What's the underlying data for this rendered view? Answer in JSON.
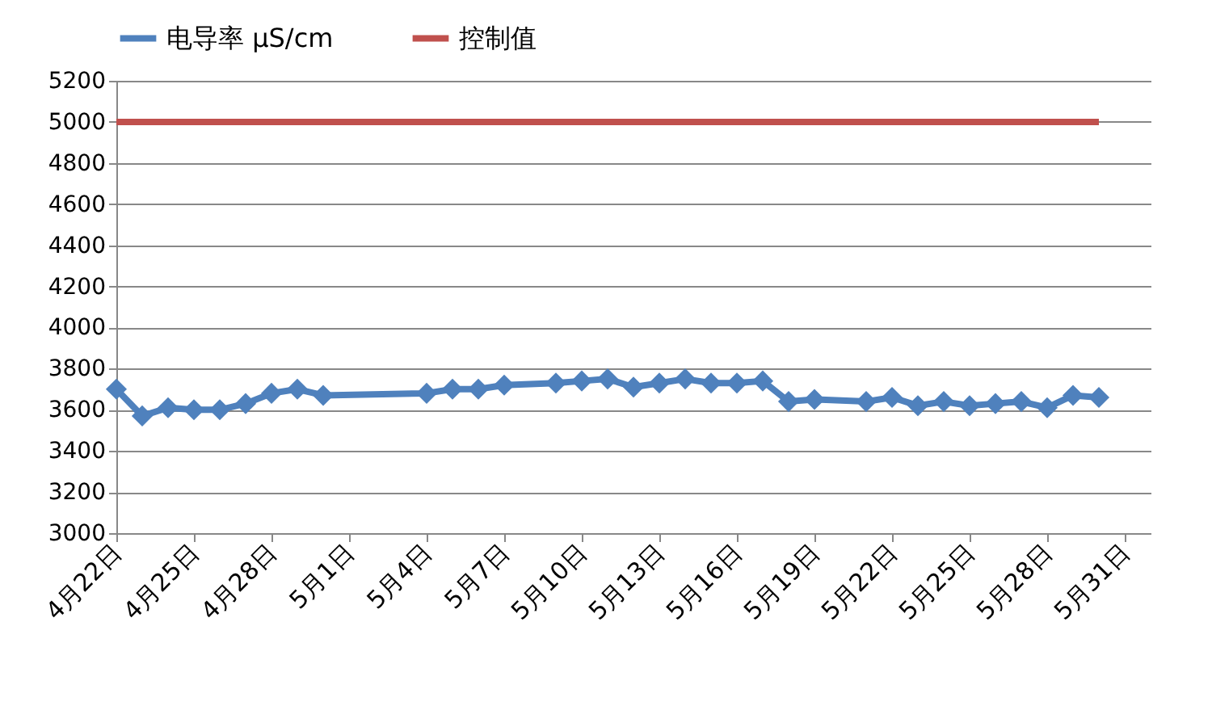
{
  "chart_data": {
    "type": "line",
    "marker": "diamond",
    "grid": "y",
    "legend": "top",
    "xlim": [
      "--04-22",
      "--06-01"
    ],
    "xticks": [
      {
        "value": "--04-22",
        "label": "4月22日"
      },
      {
        "value": "--04-25",
        "label": "4月25日"
      },
      {
        "value": "--04-28",
        "label": "4月28日"
      },
      {
        "value": "--05-01",
        "label": "5月1日"
      },
      {
        "value": "--05-04",
        "label": "5月4日"
      },
      {
        "value": "--05-07",
        "label": "5月7日"
      },
      {
        "value": "--05-10",
        "label": "5月10日"
      },
      {
        "value": "--05-13",
        "label": "5月13日"
      },
      {
        "value": "--05-16",
        "label": "5月16日"
      },
      {
        "value": "--05-19",
        "label": "5月19日"
      },
      {
        "value": "--05-22",
        "label": "5月22日"
      },
      {
        "value": "--05-25",
        "label": "5月25日"
      },
      {
        "value": "--05-28",
        "label": "5月28日"
      },
      {
        "value": "--05-31",
        "label": "5月31日"
      }
    ],
    "ylim": [
      3000,
      5200
    ],
    "yticks": [
      3000,
      3200,
      3400,
      3600,
      3800,
      4000,
      4200,
      4400,
      4600,
      4800,
      5000,
      5200
    ],
    "series": [
      {
        "name": "电导率 μS/cm",
        "color": "#4f81bd",
        "x": [
          "--04-22",
          "--04-23",
          "--04-24",
          "--04-25",
          "--04-26",
          "--04-27",
          "--04-28",
          "--04-29",
          "--04-30",
          "--05-04",
          "--05-05",
          "--05-06",
          "--05-07",
          "--05-09",
          "--05-10",
          "--05-11",
          "--05-12",
          "--05-13",
          "--05-14",
          "--05-15",
          "--05-16",
          "--05-17",
          "--05-18",
          "--05-19",
          "--05-21",
          "--05-22",
          "--05-23",
          "--05-24",
          "--05-25",
          "--05-26",
          "--05-27",
          "--05-28",
          "--05-29",
          "--05-30"
        ],
        "values": [
          3700,
          3570,
          3610,
          3600,
          3600,
          3630,
          3680,
          3700,
          3670,
          3680,
          3700,
          3700,
          3720,
          3730,
          3740,
          3750,
          3710,
          3730,
          3750,
          3730,
          3730,
          3740,
          3640,
          3650,
          3640,
          3660,
          3620,
          3640,
          3620,
          3630,
          3640,
          3610,
          3670,
          3660
        ]
      },
      {
        "name": "控制值",
        "color": "#c0504d",
        "marker": "none",
        "x": [
          "--04-22",
          "--05-30"
        ],
        "values": [
          5000,
          5000
        ]
      }
    ]
  }
}
